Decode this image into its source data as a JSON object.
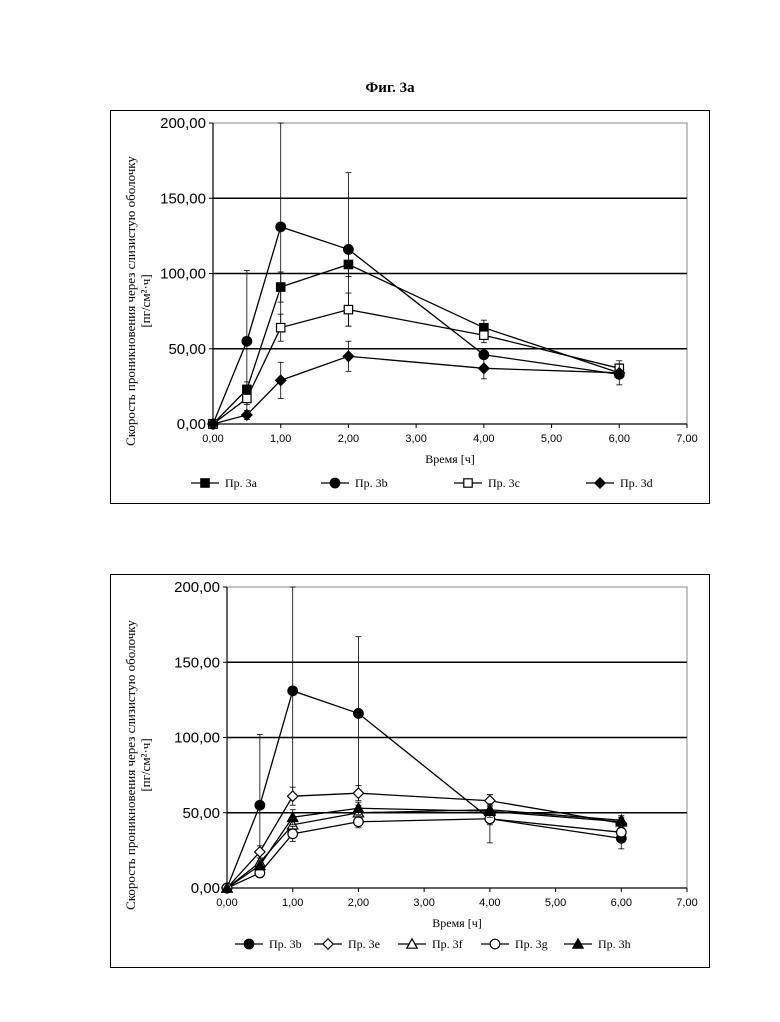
{
  "figure_title": "Фиг. 3a",
  "chart_data": [
    {
      "type": "line",
      "xlabel": "Время [ч]",
      "ylabel_line1": "Скорость проникновения через слизистую оболочку",
      "ylabel_line2": "[пг/см²·ч]",
      "xlim": [
        0,
        7
      ],
      "ylim": [
        0,
        200
      ],
      "xticks": [
        "0,00",
        "1,00",
        "2,00",
        "3,00",
        "4,00",
        "5,00",
        "6,00",
        "7,00"
      ],
      "yticks": [
        "0,00",
        "50,00",
        "100,00",
        "150,00",
        "200,00"
      ],
      "grid": "horizontal",
      "legend_position": "bottom",
      "series": [
        {
          "name": "Пр. 3a",
          "marker": "square-filled",
          "x": [
            0,
            0.5,
            1,
            2,
            4,
            6
          ],
          "y": [
            0,
            23,
            91,
            106,
            64,
            34
          ],
          "err": [
            0,
            5,
            10,
            8,
            5,
            3
          ]
        },
        {
          "name": "Пр. 3b",
          "marker": "circle-filled",
          "x": [
            0,
            0.5,
            1,
            2,
            4,
            6
          ],
          "y": [
            0,
            55,
            131,
            116,
            46,
            33
          ],
          "err": [
            0,
            47,
            69,
            51,
            0,
            0
          ]
        },
        {
          "name": "Пр. 3c",
          "marker": "square-open",
          "x": [
            0,
            0.5,
            1,
            2,
            4,
            6
          ],
          "y": [
            0,
            17,
            64,
            76,
            59,
            37
          ],
          "err": [
            0,
            4,
            9,
            11,
            5,
            3
          ]
        },
        {
          "name": "Пр. 3d",
          "marker": "diamond-filled",
          "x": [
            0,
            0.5,
            1,
            2,
            4,
            6
          ],
          "y": [
            0,
            6,
            29,
            45,
            37,
            34
          ],
          "err": [
            0,
            3,
            12,
            10,
            7,
            8
          ]
        }
      ]
    },
    {
      "type": "line",
      "xlabel": "Время [ч]",
      "ylabel_line1": "Скорость проникновения через слизистую оболочку",
      "ylabel_line2": "[пг/см²·ч]",
      "xlim": [
        0,
        7
      ],
      "ylim": [
        0,
        200
      ],
      "xticks": [
        "0,00",
        "1,00",
        "2,00",
        "3,00",
        "4,00",
        "5,00",
        "6,00",
        "7,00"
      ],
      "yticks": [
        "0,00",
        "50,00",
        "100,00",
        "150,00",
        "200,00"
      ],
      "grid": "horizontal",
      "legend_position": "bottom",
      "series": [
        {
          "name": "Пр. 3b",
          "marker": "circle-filled",
          "x": [
            0,
            0.5,
            1,
            2,
            4,
            6
          ],
          "y": [
            0,
            55,
            131,
            116,
            46,
            33
          ],
          "err": [
            0,
            47,
            69,
            51,
            16,
            7
          ]
        },
        {
          "name": "Пр. 3e",
          "marker": "diamond-open",
          "x": [
            0,
            0.5,
            1,
            2,
            4,
            6
          ],
          "y": [
            0,
            24,
            61,
            63,
            58,
            43
          ],
          "err": [
            0,
            4,
            6,
            5,
            4,
            3
          ]
        },
        {
          "name": "Пр. 3f",
          "marker": "triangle-open",
          "x": [
            0,
            0.5,
            1,
            2,
            4,
            6
          ],
          "y": [
            0,
            17,
            42,
            50,
            52,
            45
          ],
          "err": [
            0,
            3,
            5,
            5,
            4,
            3
          ]
        },
        {
          "name": "Пр. 3g",
          "marker": "circle-open",
          "x": [
            0,
            0.5,
            1,
            2,
            4,
            6
          ],
          "y": [
            0,
            10,
            36,
            44,
            46,
            37
          ],
          "err": [
            0,
            3,
            5,
            4,
            4,
            3
          ]
        },
        {
          "name": "Пр. 3h",
          "marker": "triangle-filled",
          "x": [
            0,
            0.5,
            1,
            2,
            4,
            6
          ],
          "y": [
            0,
            15,
            47,
            53,
            51,
            44
          ],
          "err": [
            0,
            3,
            5,
            4,
            4,
            3
          ]
        }
      ]
    }
  ]
}
